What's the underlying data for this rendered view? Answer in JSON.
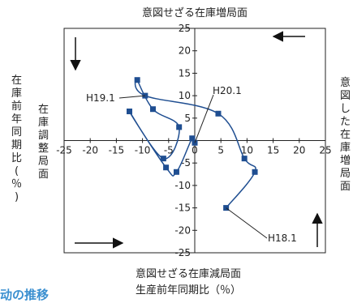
{
  "chart_data": {
    "type": "scatter",
    "mode": "lines+markers",
    "title_top": "意図せざる在庫増局面",
    "title_bottom": "意図せざる在庫減局面",
    "label_right": "意図した在庫増局面",
    "label_left_inner": "在庫調整局面",
    "xlabel": "生産前年同期比（％）",
    "ylabel": "在庫前年同期比（％）",
    "xlim": [
      -25,
      25
    ],
    "ylim": [
      -25,
      25
    ],
    "x_ticks": [
      "-25",
      "-20",
      "-15",
      "-10",
      "-5",
      "0",
      "5",
      "10",
      "15",
      "20",
      "25"
    ],
    "y_ticks": [
      "25",
      "20",
      "15",
      "10",
      "5",
      "0",
      "-5",
      "-10",
      "-15",
      "-20",
      "-25"
    ],
    "x_tick_values": [
      -25,
      -20,
      -15,
      -10,
      -5,
      0,
      5,
      10,
      15,
      20,
      25
    ],
    "y_tick_values": [
      25,
      20,
      15,
      10,
      5,
      0,
      -5,
      -10,
      -15,
      -20,
      -25
    ],
    "series": [
      {
        "x": [
          6,
          11.5,
          9.5,
          4.5,
          -9.5,
          -11,
          -8,
          -3,
          -6,
          -12.5,
          -5.5,
          -3.5,
          -0.5,
          0
        ],
        "y": [
          -15,
          -7,
          -4,
          6,
          10,
          13.5,
          7,
          3,
          -4,
          6.5,
          -6,
          -7,
          0.5,
          -0.5
        ],
        "color": "#1f4e91"
      }
    ],
    "annotations": [
      {
        "text": "H18.1"
      },
      {
        "text": "H19.1"
      },
      {
        "text": "H20.1"
      }
    ],
    "arrows": [
      "top-right",
      "left",
      "bottom-left",
      "bottom-right"
    ]
  },
  "footer_text": "动の推移"
}
